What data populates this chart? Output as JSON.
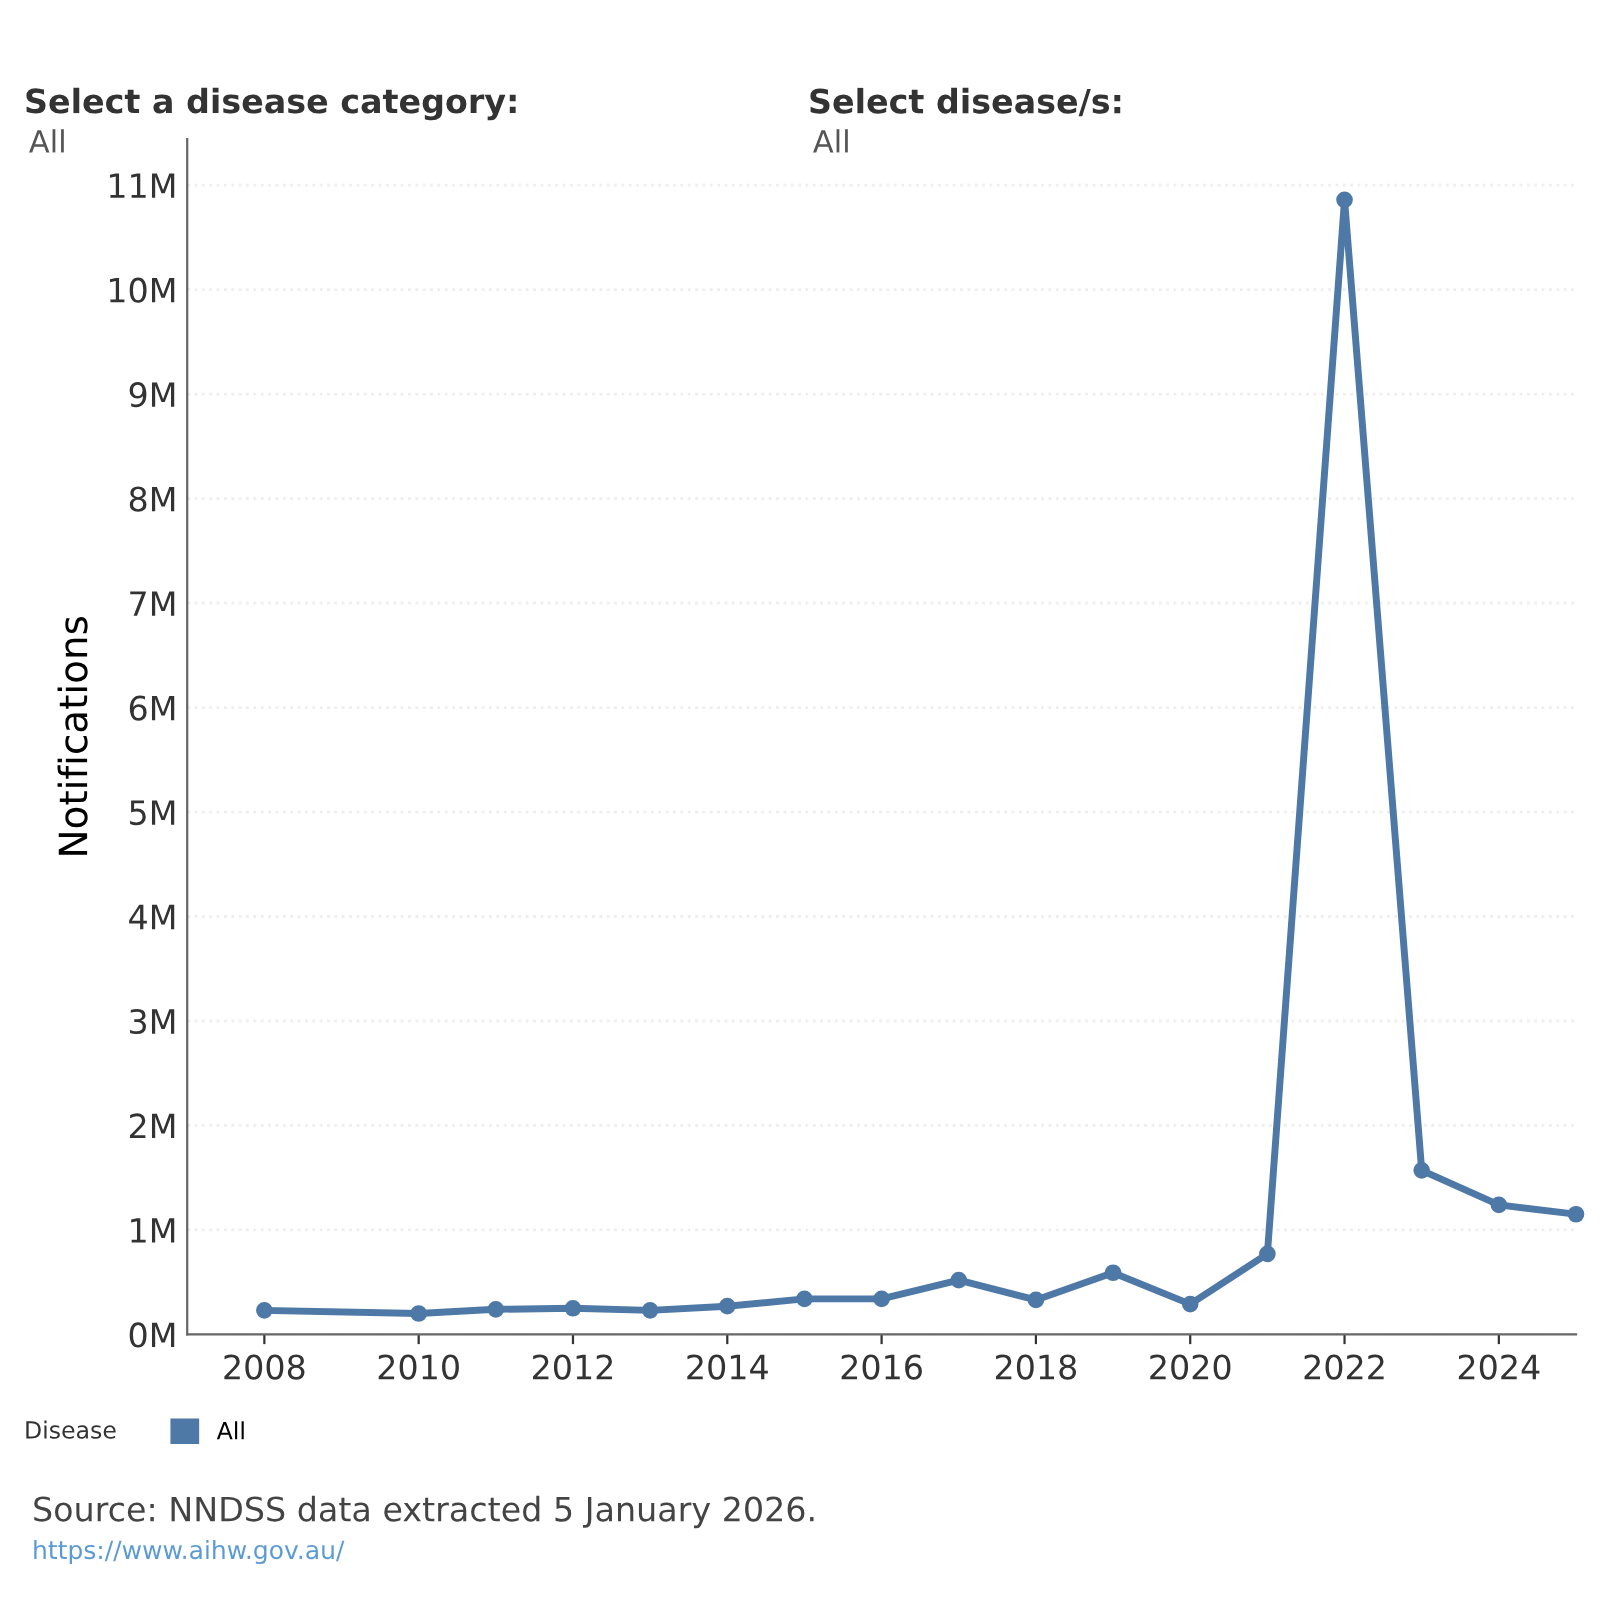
{
  "chart_data": {
    "type": "line",
    "ylabel": "Notifications",
    "legend_title": "Disease",
    "annotations": [
      "Select a disease category:",
      "All",
      "Select disease/s:",
      "All",
      "Source: NNDSS data extracted 5 January 2026.",
      "https://www.aihw.gov.au/"
    ],
    "x": [
      2008,
      2010,
      2011,
      2012,
      2013,
      2014,
      2015,
      2016,
      2017,
      2018,
      2019,
      2020,
      2021,
      2022,
      2023,
      2024,
      2025
    ],
    "series": [
      {
        "name": "All",
        "color": "#4e79a7",
        "values": [
          230000,
          200000,
          240000,
          250000,
          230000,
          270000,
          340000,
          340000,
          520000,
          330000,
          590000,
          290000,
          770000,
          10860000,
          1570000,
          1240000,
          1150000
        ]
      }
    ],
    "xlim": [
      2007,
      2025
    ],
    "xticks": [
      2008,
      2010,
      2012,
      2014,
      2016,
      2018,
      2020,
      2022,
      2024
    ],
    "ylim": [
      0,
      11440000
    ],
    "yticks": [
      {
        "value": 0,
        "label": "0M"
      },
      {
        "value": 1000000,
        "label": "1M"
      },
      {
        "value": 2000000,
        "label": "2M"
      },
      {
        "value": 3000000,
        "label": "3M"
      },
      {
        "value": 4000000,
        "label": "4M"
      },
      {
        "value": 5000000,
        "label": "5M"
      },
      {
        "value": 6000000,
        "label": "6M"
      },
      {
        "value": 7000000,
        "label": "7M"
      },
      {
        "value": 8000000,
        "label": "8M"
      },
      {
        "value": 9000000,
        "label": "9M"
      },
      {
        "value": 10000000,
        "label": "10M"
      },
      {
        "value": 11000000,
        "label": "11M"
      }
    ],
    "grid": "y",
    "legend": "bottom left",
    "marker": "circle",
    "line_style": "solid"
  }
}
